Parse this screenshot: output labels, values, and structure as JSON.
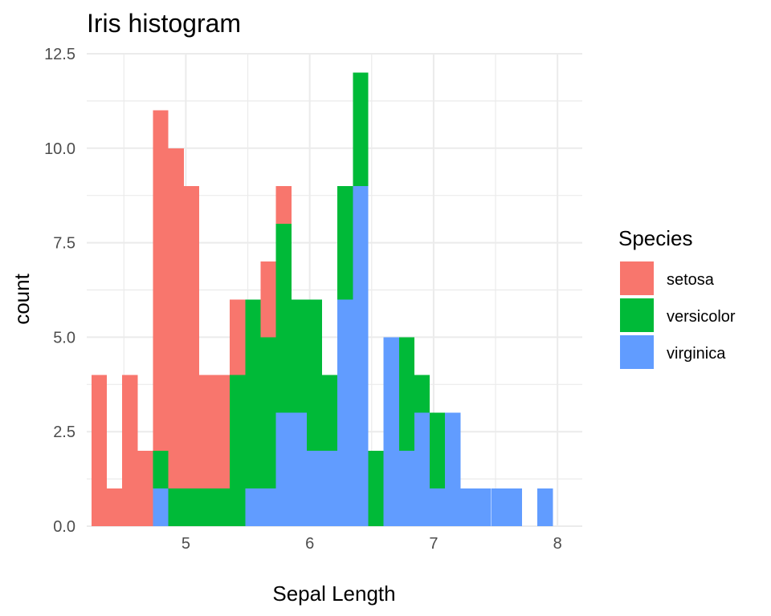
{
  "chart_data": {
    "type": "bar",
    "subtype": "stacked-histogram",
    "title": "Iris histogram",
    "xlabel": "Sepal Length",
    "ylabel": "count",
    "xlim": [
      4.2,
      8.2
    ],
    "ylim": [
      0,
      12.5
    ],
    "xticks": [
      5,
      6,
      7,
      8
    ],
    "xtick_labels": [
      "5",
      "6",
      "7",
      "8"
    ],
    "yticks": [
      0,
      2.5,
      5,
      7.5,
      10,
      12.5
    ],
    "ytick_labels": [
      "0.0",
      "2.5",
      "5.0",
      "7.5",
      "10.0",
      "12.5"
    ],
    "grid": true,
    "legend": {
      "title": "Species",
      "position": "right"
    },
    "bins": 30,
    "x": [
      4.3,
      4.424,
      4.548,
      4.672,
      4.797,
      4.921,
      5.045,
      5.169,
      5.293,
      5.417,
      5.541,
      5.666,
      5.79,
      5.914,
      6.038,
      6.162,
      6.286,
      6.41,
      6.534,
      6.659,
      6.783,
      6.907,
      7.031,
      7.155,
      7.279,
      7.403,
      7.528,
      7.652,
      7.776,
      7.9
    ],
    "series": [
      {
        "name": "setosa",
        "color": "#F8766D",
        "values": [
          4,
          1,
          4,
          2,
          9,
          9,
          8,
          3,
          3,
          2,
          0,
          2,
          1,
          0,
          0,
          0,
          0,
          0,
          0,
          0,
          0,
          0,
          0,
          0,
          0,
          0,
          0,
          0,
          0,
          0
        ]
      },
      {
        "name": "versicolor",
        "color": "#00BA38",
        "values": [
          0,
          0,
          0,
          0,
          1,
          1,
          1,
          1,
          1,
          4,
          5,
          4,
          5,
          3,
          4,
          2,
          3,
          3,
          2,
          0,
          3,
          1,
          2,
          0,
          0,
          0,
          0,
          0,
          0,
          0
        ]
      },
      {
        "name": "virginica",
        "color": "#619CFF",
        "values": [
          0,
          0,
          0,
          0,
          1,
          0,
          0,
          0,
          0,
          0,
          1,
          1,
          3,
          3,
          2,
          2,
          6,
          9,
          0,
          5,
          2,
          3,
          1,
          3,
          1,
          1,
          1,
          1,
          0,
          1
        ]
      }
    ]
  }
}
